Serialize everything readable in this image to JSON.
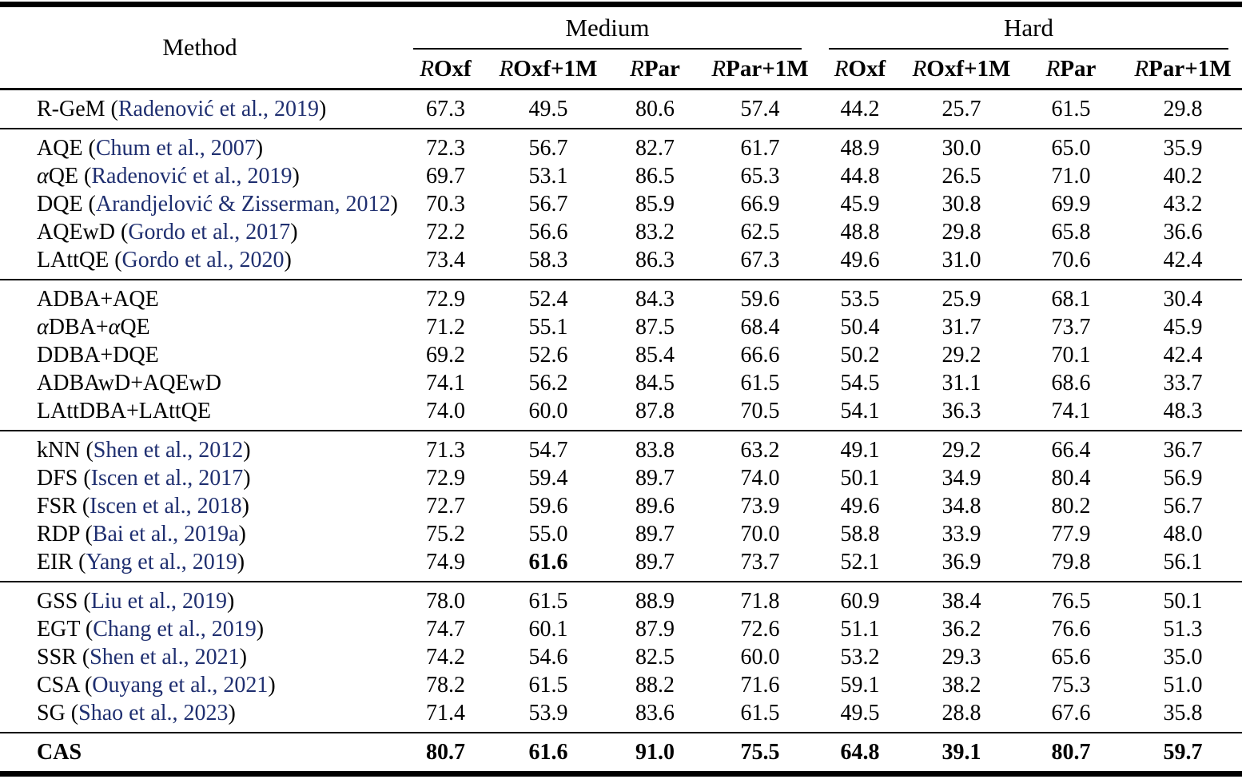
{
  "colors": {
    "citation": "#1f2f70",
    "text": "#000000",
    "background": "#ffffff"
  },
  "table": {
    "method_header": "Method",
    "col_groups": [
      {
        "id": "medium",
        "label": "Medium"
      },
      {
        "id": "hard",
        "label": "Hard"
      }
    ],
    "columns": [
      {
        "italic": "R",
        "label": "Oxf"
      },
      {
        "italic": "R",
        "label": "Oxf+1M"
      },
      {
        "italic": "R",
        "label": "Par"
      },
      {
        "italic": "R",
        "label": "Par+1M"
      },
      {
        "italic": "R",
        "label": "Oxf"
      },
      {
        "italic": "R",
        "label": "Oxf+1M"
      },
      {
        "italic": "R",
        "label": "Par"
      },
      {
        "italic": "R",
        "label": "Par+1M"
      }
    ],
    "row_groups": [
      {
        "rows": [
          {
            "name": "R-GeM",
            "citation": "Radenović et al., 2019",
            "values": [
              "67.3",
              "49.5",
              "80.6",
              "57.4",
              "44.2",
              "25.7",
              "61.5",
              "29.8"
            ],
            "bold_values": [],
            "bold_method": false
          }
        ]
      },
      {
        "rows": [
          {
            "name": "AQE",
            "citation": "Chum et al., 2007",
            "values": [
              "72.3",
              "56.7",
              "82.7",
              "61.7",
              "48.9",
              "30.0",
              "65.0",
              "35.9"
            ],
            "bold_values": [],
            "bold_method": false
          },
          {
            "name": "αQE",
            "citation": "Radenović et al., 2019",
            "values": [
              "69.7",
              "53.1",
              "86.5",
              "65.3",
              "44.8",
              "26.5",
              "71.0",
              "40.2"
            ],
            "bold_values": [],
            "bold_method": false
          },
          {
            "name": "DQE",
            "citation": "Arandjelović & Zisserman, 2012",
            "values": [
              "70.3",
              "56.7",
              "85.9",
              "66.9",
              "45.9",
              "30.8",
              "69.9",
              "43.2"
            ],
            "bold_values": [],
            "bold_method": false
          },
          {
            "name": "AQEwD",
            "citation": "Gordo et al., 2017",
            "values": [
              "72.2",
              "56.6",
              "83.2",
              "62.5",
              "48.8",
              "29.8",
              "65.8",
              "36.6"
            ],
            "bold_values": [],
            "bold_method": false
          },
          {
            "name": "LAttQE",
            "citation": "Gordo et al., 2020",
            "values": [
              "73.4",
              "58.3",
              "86.3",
              "67.3",
              "49.6",
              "31.0",
              "70.6",
              "42.4"
            ],
            "bold_values": [],
            "bold_method": false
          }
        ]
      },
      {
        "rows": [
          {
            "name": "ADBA+AQE",
            "citation": null,
            "values": [
              "72.9",
              "52.4",
              "84.3",
              "59.6",
              "53.5",
              "25.9",
              "68.1",
              "30.4"
            ],
            "bold_values": [],
            "bold_method": false
          },
          {
            "name": "αDBA+αQE",
            "citation": null,
            "values": [
              "71.2",
              "55.1",
              "87.5",
              "68.4",
              "50.4",
              "31.7",
              "73.7",
              "45.9"
            ],
            "bold_values": [],
            "bold_method": false
          },
          {
            "name": "DDBA+DQE",
            "citation": null,
            "values": [
              "69.2",
              "52.6",
              "85.4",
              "66.6",
              "50.2",
              "29.2",
              "70.1",
              "42.4"
            ],
            "bold_values": [],
            "bold_method": false
          },
          {
            "name": "ADBAwD+AQEwD",
            "citation": null,
            "values": [
              "74.1",
              "56.2",
              "84.5",
              "61.5",
              "54.5",
              "31.1",
              "68.6",
              "33.7"
            ],
            "bold_values": [],
            "bold_method": false
          },
          {
            "name": "LAttDBA+LAttQE",
            "citation": null,
            "values": [
              "74.0",
              "60.0",
              "87.8",
              "70.5",
              "54.1",
              "36.3",
              "74.1",
              "48.3"
            ],
            "bold_values": [],
            "bold_method": false
          }
        ]
      },
      {
        "rows": [
          {
            "name": "kNN",
            "citation": "Shen et al., 2012",
            "values": [
              "71.3",
              "54.7",
              "83.8",
              "63.2",
              "49.1",
              "29.2",
              "66.4",
              "36.7"
            ],
            "bold_values": [],
            "bold_method": false
          },
          {
            "name": "DFS",
            "citation": "Iscen et al., 2017",
            "values": [
              "72.9",
              "59.4",
              "89.7",
              "74.0",
              "50.1",
              "34.9",
              "80.4",
              "56.9"
            ],
            "bold_values": [],
            "bold_method": false
          },
          {
            "name": "FSR",
            "citation": "Iscen et al., 2018",
            "values": [
              "72.7",
              "59.6",
              "89.6",
              "73.9",
              "49.6",
              "34.8",
              "80.2",
              "56.7"
            ],
            "bold_values": [],
            "bold_method": false
          },
          {
            "name": "RDP",
            "citation": "Bai et al., 2019a",
            "values": [
              "75.2",
              "55.0",
              "89.7",
              "70.0",
              "58.8",
              "33.9",
              "77.9",
              "48.0"
            ],
            "bold_values": [],
            "bold_method": false
          },
          {
            "name": "EIR",
            "citation": "Yang et al., 2019",
            "values": [
              "74.9",
              "61.6",
              "89.7",
              "73.7",
              "52.1",
              "36.9",
              "79.8",
              "56.1"
            ],
            "bold_values": [
              1
            ],
            "bold_method": false
          }
        ]
      },
      {
        "rows": [
          {
            "name": "GSS",
            "citation": "Liu et al., 2019",
            "values": [
              "78.0",
              "61.5",
              "88.9",
              "71.8",
              "60.9",
              "38.4",
              "76.5",
              "50.1"
            ],
            "bold_values": [],
            "bold_method": false
          },
          {
            "name": "EGT",
            "citation": "Chang et al., 2019",
            "values": [
              "74.7",
              "60.1",
              "87.9",
              "72.6",
              "51.1",
              "36.2",
              "76.6",
              "51.3"
            ],
            "bold_values": [],
            "bold_method": false
          },
          {
            "name": "SSR",
            "citation": "Shen et al., 2021",
            "values": [
              "74.2",
              "54.6",
              "82.5",
              "60.0",
              "53.2",
              "29.3",
              "65.6",
              "35.0"
            ],
            "bold_values": [],
            "bold_method": false
          },
          {
            "name": "CSA",
            "citation": "Ouyang et al., 2021",
            "values": [
              "78.2",
              "61.5",
              "88.2",
              "71.6",
              "59.1",
              "38.2",
              "75.3",
              "51.0"
            ],
            "bold_values": [],
            "bold_method": false
          },
          {
            "name": "SG",
            "citation": "Shao et al., 2023",
            "values": [
              "71.4",
              "53.9",
              "83.6",
              "61.5",
              "49.5",
              "28.8",
              "67.6",
              "35.8"
            ],
            "bold_values": [],
            "bold_method": false
          }
        ]
      },
      {
        "rows": [
          {
            "name": "CAS",
            "citation": null,
            "values": [
              "80.7",
              "61.6",
              "91.0",
              "75.5",
              "64.8",
              "39.1",
              "80.7",
              "59.7"
            ],
            "bold_values": [
              0,
              1,
              2,
              3,
              4,
              5,
              6,
              7
            ],
            "bold_method": true
          }
        ]
      }
    ]
  }
}
